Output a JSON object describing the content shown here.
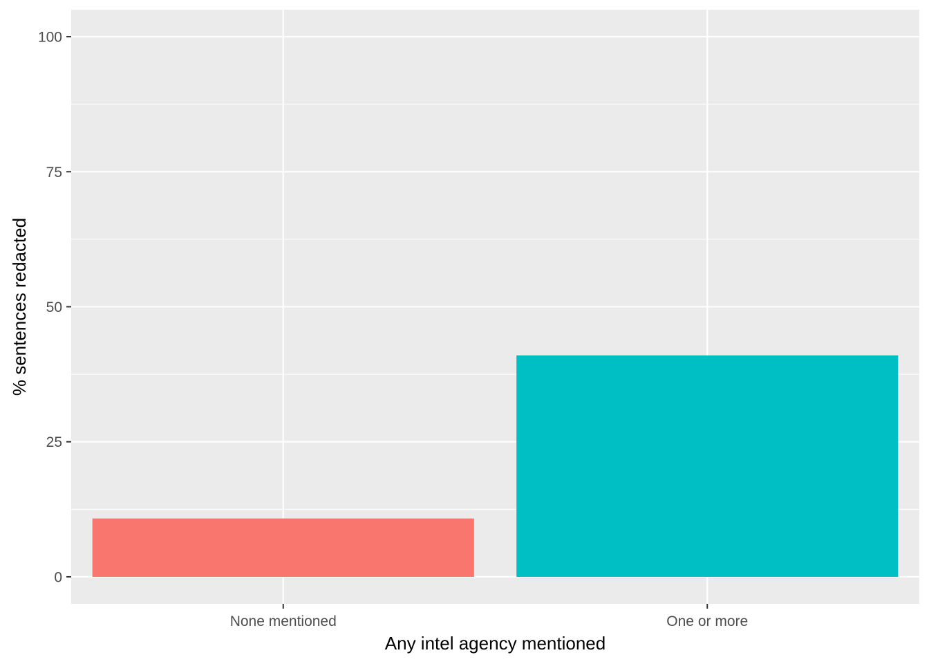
{
  "chart_data": {
    "type": "bar",
    "title": "",
    "xlabel": "Any intel agency mentioned",
    "ylabel": "% sentences redacted",
    "categories": [
      "None mentioned",
      "One or more"
    ],
    "values": [
      10.8,
      41.0
    ],
    "bar_colors": [
      "#F8766D",
      "#00BFC4"
    ],
    "ylim": [
      -5,
      105
    ],
    "yticks": [
      0,
      25,
      50,
      75,
      100
    ],
    "ytick_labels": [
      "0",
      "25",
      "50",
      "75",
      "100"
    ],
    "grid": true,
    "legend": "none",
    "panel_background": "#EBEBEB",
    "gridline_color": "#FFFFFF"
  }
}
